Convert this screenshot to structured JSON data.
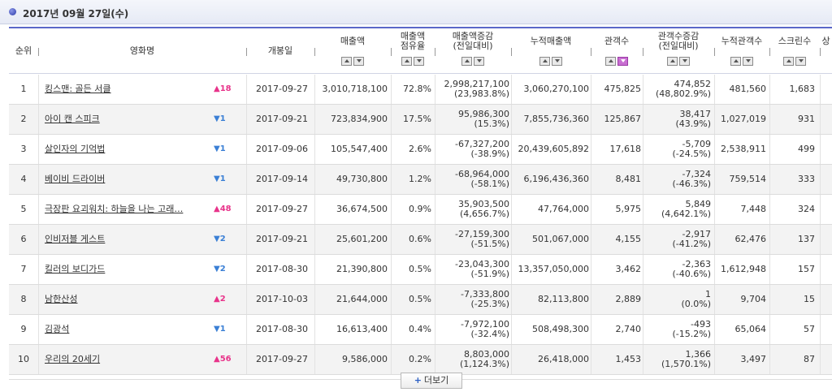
{
  "date_label": "2017년 09월 27일(수)",
  "columns": [
    {
      "key": "rank",
      "label": "순위",
      "sortable": false
    },
    {
      "key": "title",
      "label": "영화명",
      "sortable": false
    },
    {
      "key": "open_date",
      "label": "개봉일",
      "sortable": false
    },
    {
      "key": "sales",
      "label": "매출액",
      "sortable": true
    },
    {
      "key": "share",
      "label": "매출액\n점유율",
      "sortable": true
    },
    {
      "key": "sales_diff",
      "label": "매출액증감\n(전일대비)",
      "sortable": true
    },
    {
      "key": "cum_sales",
      "label": "누적매출액",
      "sortable": true
    },
    {
      "key": "audience",
      "label": "관객수",
      "sortable": true
    },
    {
      "key": "aud_diff",
      "label": "관객수증감\n(전일대비)",
      "sortable": true
    },
    {
      "key": "cum_audience",
      "label": "누적관객수",
      "sortable": true
    },
    {
      "key": "screens",
      "label": "스크린수",
      "sortable": true
    },
    {
      "key": "more",
      "label": "상",
      "sortable": false
    }
  ],
  "rows": [
    {
      "rank": "1",
      "title": "킹스맨: 골든 서클",
      "change_dir": "up",
      "change": "18",
      "open_date": "2017-09-27",
      "sales": "3,010,718,100",
      "share": "72.8%",
      "sales_diff": "2,998,217,100",
      "sales_diff_pct": "(23,983.8%)",
      "cum_sales": "3,060,270,100",
      "audience": "475,825",
      "aud_diff": "474,852",
      "aud_diff_pct": "(48,802.9%)",
      "cum_audience": "481,560",
      "screens": "1,683"
    },
    {
      "rank": "2",
      "title": "아이 캔 스피크",
      "change_dir": "down",
      "change": "1",
      "open_date": "2017-09-21",
      "sales": "723,834,900",
      "share": "17.5%",
      "sales_diff": "95,986,300",
      "sales_diff_pct": "(15.3%)",
      "cum_sales": "7,855,736,360",
      "audience": "125,867",
      "aud_diff": "38,417",
      "aud_diff_pct": "(43.9%)",
      "cum_audience": "1,027,019",
      "screens": "931"
    },
    {
      "rank": "3",
      "title": "살인자의 기억법",
      "change_dir": "down",
      "change": "1",
      "open_date": "2017-09-06",
      "sales": "105,547,400",
      "share": "2.6%",
      "sales_diff": "-67,327,200",
      "sales_diff_pct": "(-38.9%)",
      "cum_sales": "20,439,605,892",
      "audience": "17,618",
      "aud_diff": "-5,709",
      "aud_diff_pct": "(-24.5%)",
      "cum_audience": "2,538,911",
      "screens": "499"
    },
    {
      "rank": "4",
      "title": "베이비 드라이버",
      "change_dir": "down",
      "change": "1",
      "open_date": "2017-09-14",
      "sales": "49,730,800",
      "share": "1.2%",
      "sales_diff": "-68,964,000",
      "sales_diff_pct": "(-58.1%)",
      "cum_sales": "6,196,436,360",
      "audience": "8,481",
      "aud_diff": "-7,324",
      "aud_diff_pct": "(-46.3%)",
      "cum_audience": "759,514",
      "screens": "333"
    },
    {
      "rank": "5",
      "title": "극장판 요괴워치: 하늘을 나는 고래…",
      "change_dir": "up",
      "change": "48",
      "open_date": "2017-09-27",
      "sales": "36,674,500",
      "share": "0.9%",
      "sales_diff": "35,903,500",
      "sales_diff_pct": "(4,656.7%)",
      "cum_sales": "47,764,000",
      "audience": "5,975",
      "aud_diff": "5,849",
      "aud_diff_pct": "(4,642.1%)",
      "cum_audience": "7,448",
      "screens": "324"
    },
    {
      "rank": "6",
      "title": "인비저블 게스트",
      "change_dir": "down",
      "change": "2",
      "open_date": "2017-09-21",
      "sales": "25,601,200",
      "share": "0.6%",
      "sales_diff": "-27,159,300",
      "sales_diff_pct": "(-51.5%)",
      "cum_sales": "501,067,000",
      "audience": "4,155",
      "aud_diff": "-2,917",
      "aud_diff_pct": "(-41.2%)",
      "cum_audience": "62,476",
      "screens": "137"
    },
    {
      "rank": "7",
      "title": "킬러의 보디가드",
      "change_dir": "down",
      "change": "2",
      "open_date": "2017-08-30",
      "sales": "21,390,800",
      "share": "0.5%",
      "sales_diff": "-23,043,300",
      "sales_diff_pct": "(-51.9%)",
      "cum_sales": "13,357,050,000",
      "audience": "3,462",
      "aud_diff": "-2,363",
      "aud_diff_pct": "(-40.6%)",
      "cum_audience": "1,612,948",
      "screens": "157"
    },
    {
      "rank": "8",
      "title": "남한산성",
      "change_dir": "up",
      "change": "2",
      "open_date": "2017-10-03",
      "sales": "21,644,000",
      "share": "0.5%",
      "sales_diff": "-7,333,800",
      "sales_diff_pct": "(-25.3%)",
      "cum_sales": "82,113,800",
      "audience": "2,889",
      "aud_diff": "1",
      "aud_diff_pct": "(0.0%)",
      "cum_audience": "9,704",
      "screens": "15"
    },
    {
      "rank": "9",
      "title": "김광석",
      "change_dir": "down",
      "change": "1",
      "open_date": "2017-08-30",
      "sales": "16,613,400",
      "share": "0.4%",
      "sales_diff": "-7,972,100",
      "sales_diff_pct": "(-32.4%)",
      "cum_sales": "508,498,300",
      "audience": "2,740",
      "aud_diff": "-493",
      "aud_diff_pct": "(-15.2%)",
      "cum_audience": "65,064",
      "screens": "57"
    },
    {
      "rank": "10",
      "title": "우리의 20세기",
      "change_dir": "up",
      "change": "56",
      "open_date": "2017-09-27",
      "sales": "9,586,000",
      "share": "0.2%",
      "sales_diff": "8,803,000",
      "sales_diff_pct": "(1,124.3%)",
      "cum_sales": "26,418,000",
      "audience": "1,453",
      "aud_diff": "1,366",
      "aud_diff_pct": "(1,570.1%)",
      "cum_audience": "3,497",
      "screens": "87"
    }
  ],
  "more_button": {
    "label": "더보기"
  },
  "colors": {
    "up": "#e8338a",
    "down": "#3a7fd5",
    "header_border": "#5a67c8",
    "active_sort": "#c86fd1"
  }
}
